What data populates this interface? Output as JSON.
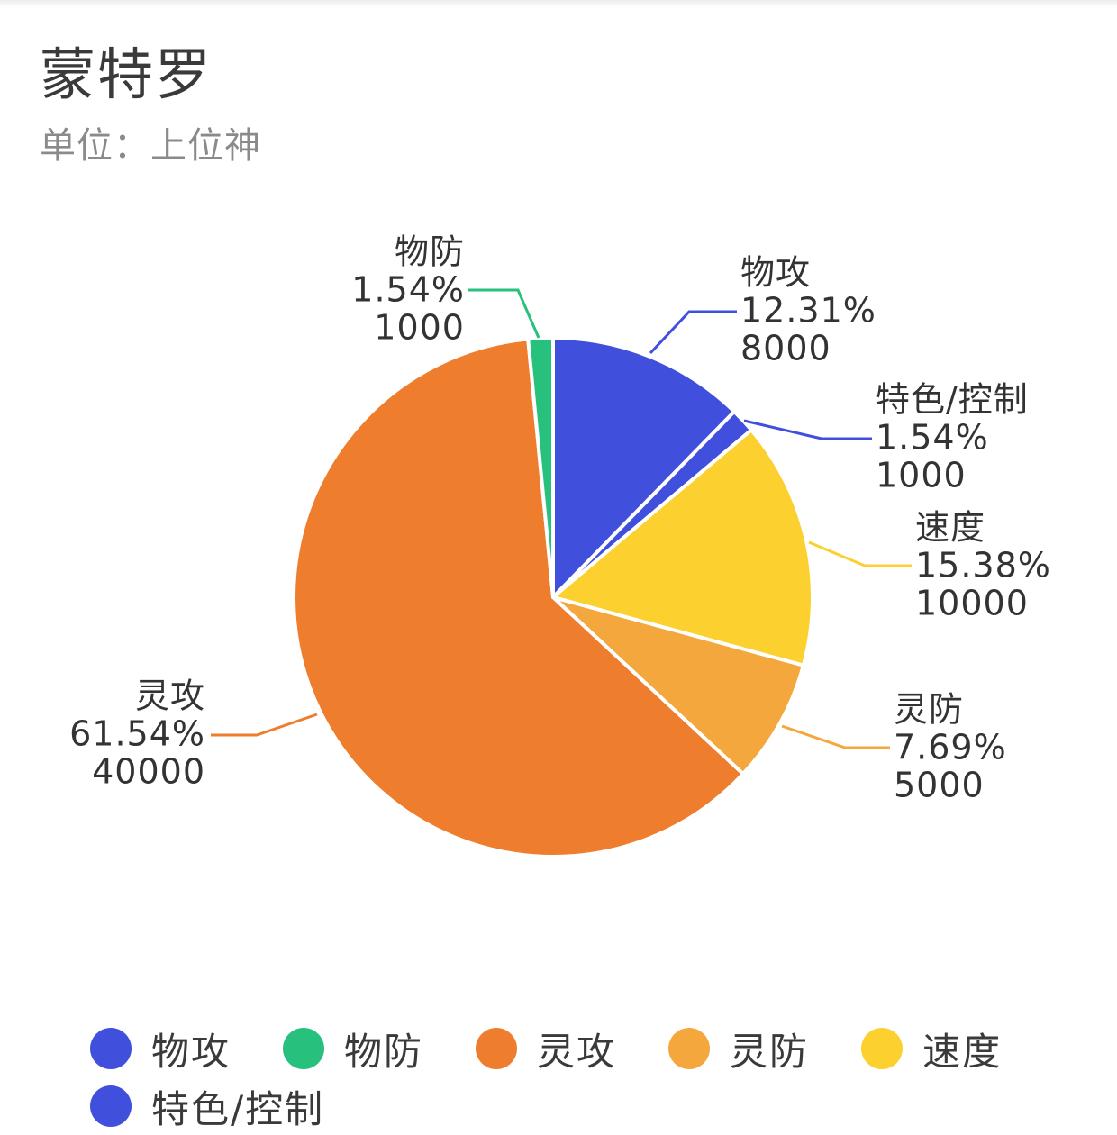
{
  "chart_data": {
    "type": "pie",
    "title": "蒙特罗",
    "subtitle": "单位：上位神",
    "slices": [
      {
        "name": "物攻",
        "value": 8000,
        "percent": "12.31%",
        "color": "#4050dd"
      },
      {
        "name": "特色/控制",
        "value": 1000,
        "percent": "1.54%",
        "color": "#4050dd"
      },
      {
        "name": "速度",
        "value": 10000,
        "percent": "15.38%",
        "color": "#fcd02f"
      },
      {
        "name": "灵防",
        "value": 5000,
        "percent": "7.69%",
        "color": "#f3a73c"
      },
      {
        "name": "灵攻",
        "value": 40000,
        "percent": "61.54%",
        "color": "#ee7d2d"
      },
      {
        "name": "物防",
        "value": 1000,
        "percent": "1.54%",
        "color": "#27c07d"
      }
    ],
    "legend": [
      {
        "name": "物攻",
        "color": "#4050dd"
      },
      {
        "name": "物防",
        "color": "#27c07d"
      },
      {
        "name": "灵攻",
        "color": "#ee7d2d"
      },
      {
        "name": "灵防",
        "color": "#f3a73c"
      },
      {
        "name": "速度",
        "color": "#fcd02f"
      },
      {
        "name": "特色/控制",
        "color": "#4050dd"
      }
    ],
    "legend_position": "bottom"
  }
}
